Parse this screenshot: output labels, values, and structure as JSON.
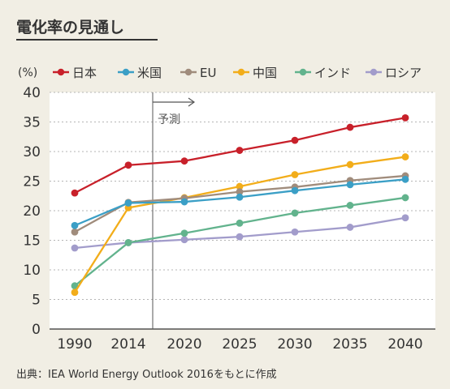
{
  "title": "電化率の見通し",
  "source": "出典：IEA World Energy Outlook 2016をもとに作成",
  "chart_data": {
    "type": "line",
    "unit_label": "(%)",
    "forecast_label": "予測",
    "categories": [
      "1990",
      "2014",
      "2020",
      "2025",
      "2030",
      "2035",
      "2040"
    ],
    "y_ticks": [
      "0",
      "5",
      "10",
      "15",
      "20",
      "25",
      "30",
      "35",
      "40"
    ],
    "ylim": [
      0,
      40
    ],
    "grid": true,
    "legend_position": "top",
    "series": [
      {
        "name": "日本",
        "color": "#c8202a",
        "values": [
          23.0,
          27.7,
          28.4,
          30.2,
          31.9,
          34.1,
          35.7
        ]
      },
      {
        "name": "米国",
        "color": "#3b9fc6",
        "values": [
          17.5,
          21.3,
          21.5,
          22.3,
          23.4,
          24.4,
          25.3
        ]
      },
      {
        "name": "EU",
        "color": "#a08c7c",
        "values": [
          16.4,
          21.4,
          22.1,
          23.2,
          24.0,
          25.1,
          25.9
        ]
      },
      {
        "name": "中国",
        "color": "#f2ad1a",
        "values": [
          6.2,
          20.5,
          22.2,
          24.1,
          26.1,
          27.8,
          29.1
        ]
      },
      {
        "name": "インド",
        "color": "#62b38d",
        "values": [
          7.3,
          14.6,
          16.2,
          17.9,
          19.6,
          20.9,
          22.2
        ]
      },
      {
        "name": "ロシア",
        "color": "#a29ccb",
        "values": [
          13.7,
          14.6,
          15.1,
          15.6,
          16.4,
          17.2,
          18.8
        ]
      }
    ]
  }
}
